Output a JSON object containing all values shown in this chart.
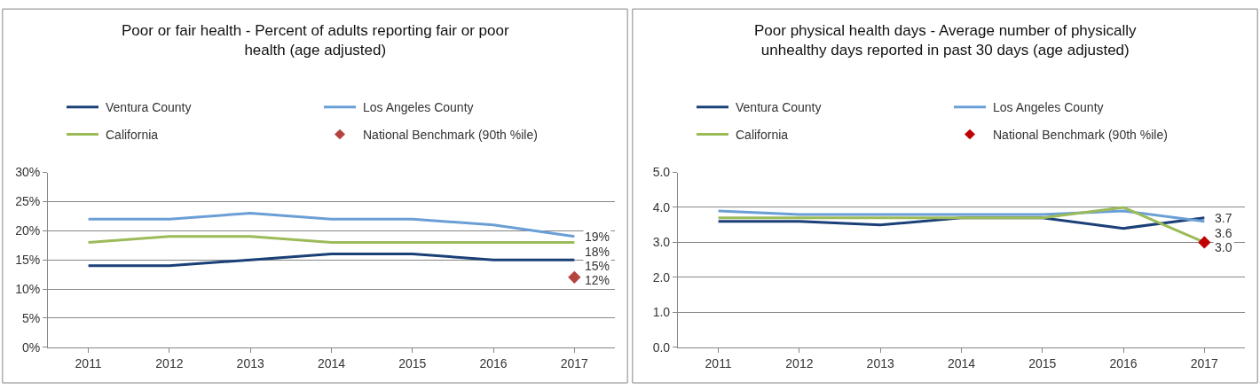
{
  "chart_data": [
    {
      "type": "line",
      "title": "Poor or fair health - Percent of adults reporting fair or poor health (age adjusted)",
      "categories": [
        "2011",
        "2012",
        "2013",
        "2014",
        "2015",
        "2016",
        "2017"
      ],
      "series": [
        {
          "name": "Ventura County",
          "color": "#1b3f77",
          "values": [
            14,
            14,
            15,
            16,
            16,
            15,
            15
          ],
          "value_labels": [
            null,
            null,
            null,
            null,
            null,
            null,
            "15%"
          ]
        },
        {
          "name": "Los Angeles County",
          "color": "#6a9fd6",
          "values": [
            22,
            22,
            23,
            22,
            22,
            21,
            19
          ],
          "value_labels": [
            null,
            null,
            null,
            null,
            null,
            null,
            "19%"
          ]
        },
        {
          "name": "California",
          "color": "#9bbb59",
          "values": [
            18,
            19,
            19,
            18,
            18,
            18,
            18
          ],
          "value_labels": [
            null,
            null,
            null,
            null,
            null,
            null,
            "18%"
          ]
        },
        {
          "name": "National Benchmark (90th %ile)",
          "type": "scatter",
          "marker": "diamond",
          "color": "#b5433f",
          "values": [
            null,
            null,
            null,
            null,
            null,
            null,
            12
          ],
          "value_labels": [
            null,
            null,
            null,
            null,
            null,
            null,
            "12%"
          ]
        }
      ],
      "ylim": [
        0,
        30
      ],
      "yticks": [
        {
          "value": 0,
          "label": "0%"
        },
        {
          "value": 5,
          "label": "5%"
        },
        {
          "value": 10,
          "label": "10%"
        },
        {
          "value": 15,
          "label": "15%"
        },
        {
          "value": 20,
          "label": "20%"
        },
        {
          "value": 25,
          "label": "25%"
        },
        {
          "value": 30,
          "label": "30%"
        }
      ],
      "grid": "y",
      "legend": "top",
      "marker": "none"
    },
    {
      "type": "line",
      "title": "Poor physical health days - Average number of physically unhealthy days reported in past 30 days (age adjusted)",
      "categories": [
        "2011",
        "2012",
        "2013",
        "2014",
        "2015",
        "2016",
        "2017"
      ],
      "series": [
        {
          "name": "Ventura County",
          "color": "#1b3f77",
          "values": [
            3.6,
            3.6,
            3.5,
            3.7,
            3.7,
            3.4,
            3.7
          ],
          "value_labels": [
            null,
            null,
            null,
            null,
            null,
            null,
            "3.7"
          ]
        },
        {
          "name": "Los Angeles County",
          "color": "#6a9fd6",
          "values": [
            3.9,
            3.8,
            3.8,
            3.8,
            3.8,
            3.9,
            3.6
          ],
          "value_labels": [
            null,
            null,
            null,
            null,
            null,
            null,
            "3.6"
          ]
        },
        {
          "name": "California",
          "color": "#9bbb59",
          "values": [
            3.7,
            3.7,
            3.7,
            3.7,
            3.7,
            4.0,
            3.0
          ]
        },
        {
          "name": "National Benchmark (90th %ile)",
          "type": "scatter",
          "marker": "diamond",
          "color": "#c00000",
          "values": [
            null,
            null,
            null,
            null,
            null,
            null,
            3.0
          ],
          "value_labels": [
            null,
            null,
            null,
            null,
            null,
            null,
            "3.0"
          ]
        }
      ],
      "ylim": [
        0,
        5
      ],
      "yticks": [
        {
          "value": 0,
          "label": "0.0"
        },
        {
          "value": 1,
          "label": "1.0"
        },
        {
          "value": 2,
          "label": "2.0"
        },
        {
          "value": 3,
          "label": "3.0"
        },
        {
          "value": 4,
          "label": "4.0"
        },
        {
          "value": 5,
          "label": "5.0"
        }
      ],
      "grid": "y",
      "legend": "top",
      "marker": "none"
    }
  ]
}
